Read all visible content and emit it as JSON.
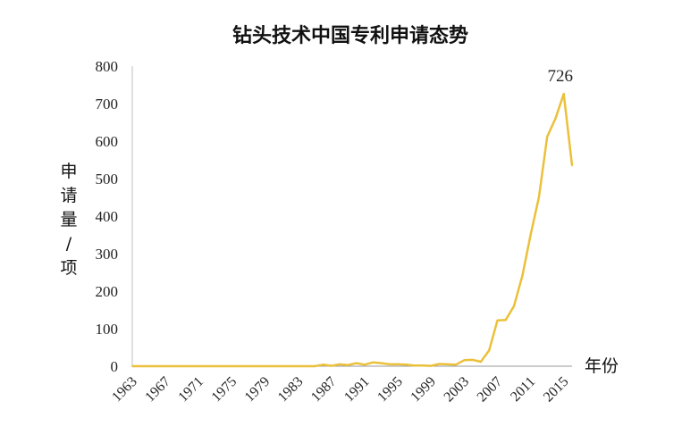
{
  "chart_data": {
    "type": "line",
    "title": "钻头技术中国专利申请态势",
    "xlabel": "年份",
    "ylabel": "申请量/项",
    "ylim": [
      0,
      800
    ],
    "y_ticks": [
      "0",
      "100",
      "200",
      "300",
      "400",
      "500",
      "600",
      "700",
      "800"
    ],
    "x_ticks": [
      "1963",
      "1967",
      "1971",
      "1975",
      "1979",
      "1983",
      "1987",
      "1991",
      "1995",
      "1999",
      "2003",
      "2007",
      "2011",
      "2015"
    ],
    "grid": false,
    "line_color": "#EBC03A",
    "x": [
      1963,
      1964,
      1965,
      1966,
      1967,
      1968,
      1969,
      1970,
      1971,
      1972,
      1973,
      1974,
      1975,
      1976,
      1977,
      1978,
      1979,
      1980,
      1981,
      1982,
      1983,
      1984,
      1985,
      1986,
      1987,
      1988,
      1989,
      1990,
      1991,
      1992,
      1993,
      1994,
      1995,
      1996,
      1997,
      1998,
      1999,
      2000,
      2001,
      2002,
      2003,
      2004,
      2005,
      2006,
      2007,
      2008,
      2009,
      2010,
      2011,
      2012,
      2013,
      2014,
      2015,
      2016
    ],
    "values": [
      0,
      0,
      0,
      0,
      0,
      0,
      0,
      0,
      0,
      0,
      0,
      0,
      0,
      0,
      0,
      0,
      0,
      0,
      0,
      0,
      0,
      0,
      0,
      4,
      1,
      5,
      3,
      8,
      4,
      10,
      8,
      5,
      5,
      4,
      2,
      2,
      1,
      6,
      5,
      4,
      16,
      17,
      12,
      42,
      122,
      123,
      160,
      240,
      350,
      450,
      612,
      660,
      726,
      535
    ],
    "annotations": [
      {
        "x": 2015,
        "y": 726,
        "text": "726"
      }
    ]
  }
}
